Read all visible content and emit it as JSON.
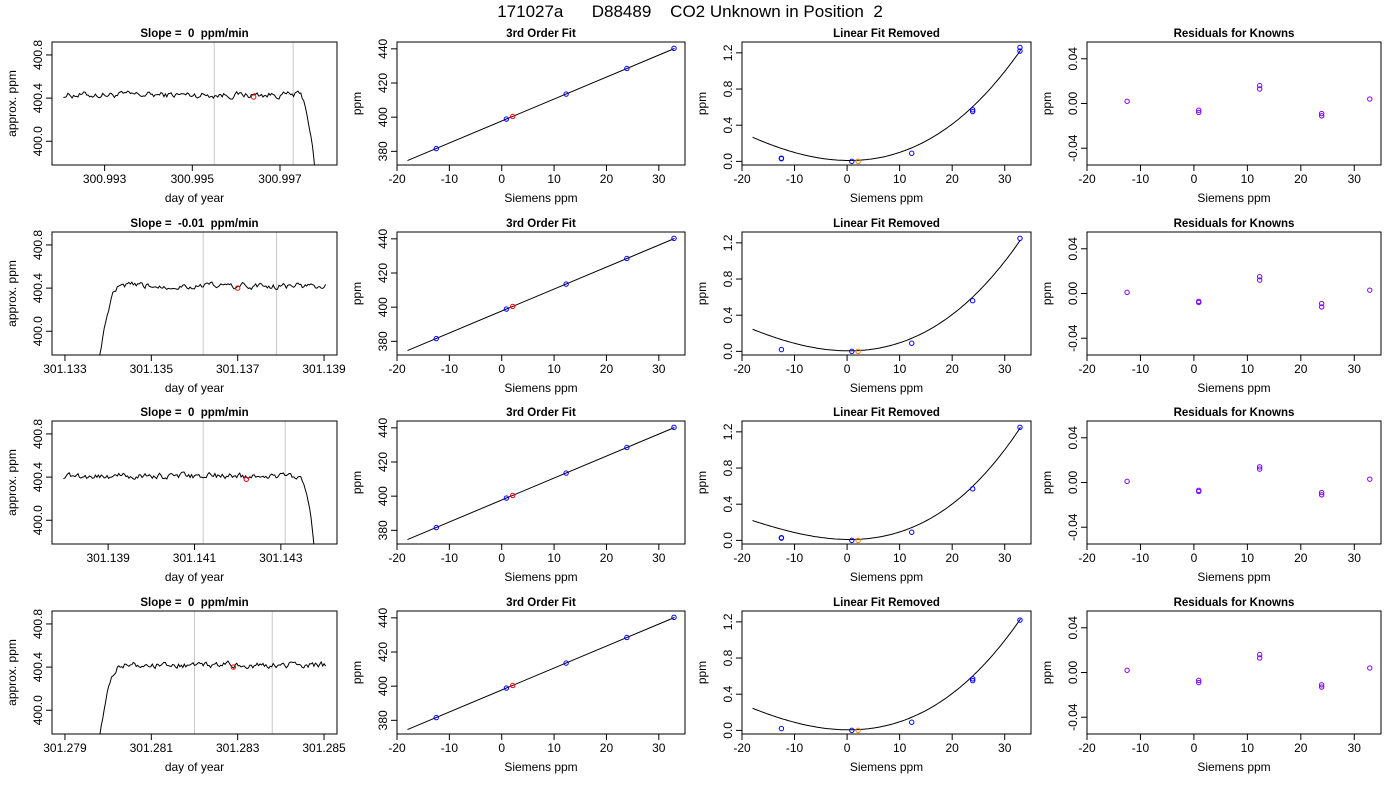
{
  "page_title": "171027a      D88489    CO2 Unknown in Position  2",
  "colors": {
    "background": "#ffffff",
    "trace": "#000000",
    "marker_vline": "#c8c8c8",
    "unknown_point": "#ff0000",
    "known_point": "#0000ff",
    "residual_point": "#8000ff",
    "orange_point": "#ff8000"
  },
  "chart_data": [
    {
      "type": "line",
      "row": 0,
      "col": 0,
      "title": "Slope =  0  ppm/min",
      "xlabel": "day of year",
      "ylabel": "approx. ppm",
      "xlim": [
        300.9918,
        300.9983
      ],
      "ylim": [
        399.78,
        400.92
      ],
      "xticks": [
        300.993,
        300.995,
        300.997
      ],
      "xtick_labels": [
        "300.993",
        "300.995",
        "300.997"
      ],
      "yticks": [
        400.0,
        400.4,
        400.8
      ],
      "ytick_labels": [
        "400.0",
        "400.4",
        "400.8"
      ],
      "vlines": [
        300.9955,
        300.9973
      ],
      "start_level": 400.43,
      "edge": "fall",
      "red_points": [
        {
          "x": 300.9964,
          "y": 400.41
        }
      ]
    },
    {
      "type": "line",
      "row": 0,
      "col": 1,
      "title": "3rd Order Fit",
      "xlabel": "Siemens ppm",
      "ylabel": "ppm",
      "xlim": [
        -20,
        35
      ],
      "ylim": [
        372,
        444
      ],
      "xticks": [
        -20,
        -10,
        0,
        10,
        20,
        30
      ],
      "xtick_labels": [
        "-20",
        "-10",
        "0",
        "10",
        "20",
        "30"
      ],
      "yticks": [
        380,
        400,
        420,
        440
      ],
      "ytick_labels": [
        "380",
        "400",
        "420",
        "440"
      ],
      "line": {
        "x": [
          -18,
          33
        ],
        "y": [
          374.6,
          440.2
        ]
      },
      "blue_points": [
        {
          "x": -12.5,
          "y": 381.6
        },
        {
          "x": 0.9,
          "y": 398.9
        },
        {
          "x": 12.3,
          "y": 413.5
        },
        {
          "x": 23.9,
          "y": 428.5
        },
        {
          "x": 32.9,
          "y": 440.3
        }
      ],
      "red_points": [
        {
          "x": 2.1,
          "y": 400.4
        }
      ]
    },
    {
      "type": "line",
      "row": 0,
      "col": 2,
      "title": "Linear Fit Removed",
      "xlabel": "Siemens ppm",
      "ylabel": "ppm",
      "xlim": [
        -20,
        35
      ],
      "ylim": [
        -0.04,
        1.32
      ],
      "xticks": [
        -20,
        -10,
        0,
        10,
        20,
        30
      ],
      "xtick_labels": [
        "-20",
        "-10",
        "0",
        "10",
        "20",
        "30"
      ],
      "yticks": [
        0.0,
        0.4,
        0.8,
        1.2
      ],
      "ytick_labels": [
        "0.0",
        "0.4",
        "0.8",
        "1.2"
      ],
      "curve_coef": [
        0.01,
        -0.00073,
        0.00089,
        7.6e-06
      ],
      "curve_xlim": [
        -18,
        33
      ],
      "blue_points": [
        {
          "x": -12.5,
          "y": 0.03
        },
        {
          "x": -12.5,
          "y": 0.035
        },
        {
          "x": 0.9,
          "y": 0.0
        },
        {
          "x": 12.3,
          "y": 0.09
        },
        {
          "x": 23.9,
          "y": 0.55
        },
        {
          "x": 23.9,
          "y": 0.57
        },
        {
          "x": 32.9,
          "y": 1.22
        },
        {
          "x": 32.9,
          "y": 1.26
        }
      ],
      "orange_points": [
        {
          "x": 2.1,
          "y": 0.0
        }
      ]
    },
    {
      "type": "scatter",
      "row": 0,
      "col": 3,
      "title": "Residuals for Knowns",
      "xlabel": "Siemens ppm",
      "ylabel": "ppm",
      "xlim": [
        -20,
        35
      ],
      "ylim": [
        -0.055,
        0.055
      ],
      "xticks": [
        -20,
        -10,
        0,
        10,
        20,
        30
      ],
      "xtick_labels": [
        "-20",
        "-10",
        "0",
        "10",
        "20",
        "30"
      ],
      "yticks": [
        -0.04,
        0.0,
        0.04
      ],
      "ytick_labels": [
        "-0.04",
        "0.00",
        "0.04"
      ],
      "purple_points": [
        {
          "x": -12.5,
          "y": 0.002
        },
        {
          "x": 0.9,
          "y": -0.008
        },
        {
          "x": 0.9,
          "y": -0.006
        },
        {
          "x": 12.3,
          "y": 0.013
        },
        {
          "x": 12.3,
          "y": 0.016
        },
        {
          "x": 23.9,
          "y": -0.011
        },
        {
          "x": 23.9,
          "y": -0.009
        },
        {
          "x": 32.9,
          "y": 0.004
        }
      ]
    },
    {
      "type": "line",
      "row": 1,
      "col": 0,
      "title": "Slope =  -0.01  ppm/min",
      "xlabel": "day of year",
      "ylabel": "approx. ppm",
      "xlim": [
        301.1327,
        301.1393
      ],
      "ylim": [
        399.78,
        400.92
      ],
      "xticks": [
        301.133,
        301.135,
        301.137,
        301.139
      ],
      "xtick_labels": [
        "301.133",
        "301.135",
        "301.137",
        "301.139"
      ],
      "yticks": [
        400.0,
        400.4,
        400.8
      ],
      "ytick_labels": [
        "400.0",
        "400.4",
        "400.8"
      ],
      "vlines": [
        301.1362,
        301.1379
      ],
      "start_level": 400.42,
      "edge": "rise",
      "red_points": [
        {
          "x": 301.137,
          "y": 400.4
        }
      ]
    },
    {
      "type": "line",
      "row": 1,
      "col": 1,
      "title": "3rd Order Fit",
      "xlabel": "Siemens ppm",
      "ylabel": "ppm",
      "xlim": [
        -20,
        35
      ],
      "ylim": [
        372,
        444
      ],
      "xticks": [
        -20,
        -10,
        0,
        10,
        20,
        30
      ],
      "xtick_labels": [
        "-20",
        "-10",
        "0",
        "10",
        "20",
        "30"
      ],
      "yticks": [
        380,
        400,
        420,
        440
      ],
      "ytick_labels": [
        "380",
        "400",
        "420",
        "440"
      ],
      "line": {
        "x": [
          -18,
          33
        ],
        "y": [
          374.6,
          440.2
        ]
      },
      "blue_points": [
        {
          "x": -12.5,
          "y": 381.6
        },
        {
          "x": 0.9,
          "y": 398.9
        },
        {
          "x": 12.3,
          "y": 413.5
        },
        {
          "x": 23.9,
          "y": 428.5
        },
        {
          "x": 32.9,
          "y": 440.3
        }
      ],
      "red_points": [
        {
          "x": 2.1,
          "y": 400.4
        }
      ]
    },
    {
      "type": "line",
      "row": 1,
      "col": 2,
      "title": "Linear Fit Removed",
      "xlabel": "Siemens ppm",
      "ylabel": "ppm",
      "xlim": [
        -20,
        35
      ],
      "ylim": [
        -0.04,
        1.32
      ],
      "xticks": [
        -20,
        -10,
        0,
        10,
        20,
        30
      ],
      "xtick_labels": [
        "-20",
        "-10",
        "0",
        "10",
        "20",
        "30"
      ],
      "yticks": [
        0.0,
        0.4,
        0.8,
        1.2
      ],
      "ytick_labels": [
        "0.0",
        "0.4",
        "0.8",
        "1.2"
      ],
      "curve_coef": [
        0.006,
        -0.00058,
        0.00086,
        8.6e-06
      ],
      "curve_xlim": [
        -18,
        33
      ],
      "blue_points": [
        {
          "x": -12.5,
          "y": 0.02
        },
        {
          "x": 0.9,
          "y": 0.0
        },
        {
          "x": 12.3,
          "y": 0.09
        },
        {
          "x": 23.9,
          "y": 0.56
        },
        {
          "x": 32.9,
          "y": 1.25
        }
      ],
      "orange_points": [
        {
          "x": 2.1,
          "y": 0.0
        }
      ]
    },
    {
      "type": "scatter",
      "row": 1,
      "col": 3,
      "title": "Residuals for Knowns",
      "xlabel": "Siemens ppm",
      "ylabel": "ppm",
      "xlim": [
        -20,
        35
      ],
      "ylim": [
        -0.055,
        0.055
      ],
      "xticks": [
        -20,
        -10,
        0,
        10,
        20,
        30
      ],
      "xtick_labels": [
        "-20",
        "-10",
        "0",
        "10",
        "20",
        "30"
      ],
      "yticks": [
        -0.04,
        0.0,
        0.04
      ],
      "ytick_labels": [
        "-0.04",
        "0.00",
        "0.04"
      ],
      "purple_points": [
        {
          "x": -12.5,
          "y": 0.001
        },
        {
          "x": 0.9,
          "y": -0.008
        },
        {
          "x": 0.9,
          "y": -0.007
        },
        {
          "x": 12.3,
          "y": 0.012
        },
        {
          "x": 12.3,
          "y": 0.015
        },
        {
          "x": 23.9,
          "y": -0.012
        },
        {
          "x": 23.9,
          "y": -0.009
        },
        {
          "x": 32.9,
          "y": 0.003
        }
      ]
    },
    {
      "type": "line",
      "row": 2,
      "col": 0,
      "title": "Slope =  0  ppm/min",
      "xlabel": "day of year",
      "ylabel": "approx. ppm",
      "xlim": [
        301.1377,
        301.1443
      ],
      "ylim": [
        399.78,
        400.92
      ],
      "xticks": [
        301.139,
        301.141,
        301.143
      ],
      "xtick_labels": [
        "301.139",
        "301.141",
        "301.143"
      ],
      "yticks": [
        400.0,
        400.4,
        400.8
      ],
      "ytick_labels": [
        "400.0",
        "400.4",
        "400.8"
      ],
      "vlines": [
        301.1412,
        301.1431
      ],
      "start_level": 400.41,
      "edge": "fall",
      "red_points": [
        {
          "x": 301.1422,
          "y": 400.38
        }
      ]
    },
    {
      "type": "line",
      "row": 2,
      "col": 1,
      "title": "3rd Order Fit",
      "xlabel": "Siemens ppm",
      "ylabel": "ppm",
      "xlim": [
        -20,
        35
      ],
      "ylim": [
        372,
        444
      ],
      "xticks": [
        -20,
        -10,
        0,
        10,
        20,
        30
      ],
      "xtick_labels": [
        "-20",
        "-10",
        "0",
        "10",
        "20",
        "30"
      ],
      "yticks": [
        380,
        400,
        420,
        440
      ],
      "ytick_labels": [
        "380",
        "400",
        "420",
        "440"
      ],
      "line": {
        "x": [
          -18,
          33
        ],
        "y": [
          374.6,
          440.2
        ]
      },
      "blue_points": [
        {
          "x": -12.5,
          "y": 381.6
        },
        {
          "x": 0.9,
          "y": 398.9
        },
        {
          "x": 12.3,
          "y": 413.5
        },
        {
          "x": 23.9,
          "y": 428.5
        },
        {
          "x": 32.9,
          "y": 440.3
        }
      ],
      "red_points": [
        {
          "x": 2.1,
          "y": 400.4
        }
      ]
    },
    {
      "type": "line",
      "row": 2,
      "col": 2,
      "title": "Linear Fit Removed",
      "xlabel": "Siemens ppm",
      "ylabel": "ppm",
      "xlim": [
        -20,
        35
      ],
      "ylim": [
        -0.04,
        1.32
      ],
      "xticks": [
        -20,
        -10,
        0,
        10,
        20,
        30
      ],
      "xtick_labels": [
        "-20",
        "-10",
        "0",
        "10",
        "20",
        "30"
      ],
      "yticks": [
        0.0,
        0.4,
        0.8,
        1.2
      ],
      "ytick_labels": [
        "0.0",
        "0.4",
        "0.8",
        "1.2"
      ],
      "curve_coef": [
        0.01,
        -0.0008,
        0.0008,
        1.1e-05
      ],
      "curve_xlim": [
        -18,
        33
      ],
      "blue_points": [
        {
          "x": -12.5,
          "y": 0.025
        },
        {
          "x": -12.5,
          "y": 0.03
        },
        {
          "x": 0.9,
          "y": 0.0
        },
        {
          "x": 12.3,
          "y": 0.09
        },
        {
          "x": 23.9,
          "y": 0.57
        },
        {
          "x": 32.9,
          "y": 1.25
        }
      ],
      "orange_points": [
        {
          "x": 2.1,
          "y": 0.0
        }
      ]
    },
    {
      "type": "scatter",
      "row": 2,
      "col": 3,
      "title": "Residuals for Knowns",
      "xlabel": "Siemens ppm",
      "ylabel": "ppm",
      "xlim": [
        -20,
        35
      ],
      "ylim": [
        -0.055,
        0.055
      ],
      "xticks": [
        -20,
        -10,
        0,
        10,
        20,
        30
      ],
      "xtick_labels": [
        "-20",
        "-10",
        "0",
        "10",
        "20",
        "30"
      ],
      "yticks": [
        -0.04,
        0.0,
        0.04
      ],
      "ytick_labels": [
        "-0.04",
        "0.00",
        "0.04"
      ],
      "purple_points": [
        {
          "x": -12.5,
          "y": 0.001
        },
        {
          "x": 0.9,
          "y": -0.008
        },
        {
          "x": 0.9,
          "y": -0.007
        },
        {
          "x": 12.3,
          "y": 0.012
        },
        {
          "x": 12.3,
          "y": 0.014
        },
        {
          "x": 23.9,
          "y": -0.011
        },
        {
          "x": 23.9,
          "y": -0.009
        },
        {
          "x": 32.9,
          "y": 0.003
        }
      ]
    },
    {
      "type": "line",
      "row": 3,
      "col": 0,
      "title": "Slope =  0  ppm/min",
      "xlabel": "day of year",
      "ylabel": "approx. ppm",
      "xlim": [
        301.2787,
        301.2853
      ],
      "ylim": [
        399.78,
        400.92
      ],
      "xticks": [
        301.279,
        301.281,
        301.283,
        301.285
      ],
      "xtick_labels": [
        "301.279",
        "301.281",
        "301.283",
        "301.285"
      ],
      "yticks": [
        400.0,
        400.4,
        400.8
      ],
      "ytick_labels": [
        "400.0",
        "400.4",
        "400.8"
      ],
      "vlines": [
        301.282,
        301.2838
      ],
      "start_level": 400.42,
      "edge": "rise",
      "red_points": [
        {
          "x": 301.2829,
          "y": 400.4
        }
      ]
    },
    {
      "type": "line",
      "row": 3,
      "col": 1,
      "title": "3rd Order Fit",
      "xlabel": "Siemens ppm",
      "ylabel": "ppm",
      "xlim": [
        -20,
        35
      ],
      "ylim": [
        372,
        444
      ],
      "xticks": [
        -20,
        -10,
        0,
        10,
        20,
        30
      ],
      "xtick_labels": [
        "-20",
        "-10",
        "0",
        "10",
        "20",
        "30"
      ],
      "yticks": [
        380,
        400,
        420,
        440
      ],
      "ytick_labels": [
        "380",
        "400",
        "420",
        "440"
      ],
      "line": {
        "x": [
          -18,
          33
        ],
        "y": [
          374.6,
          440.2
        ]
      },
      "blue_points": [
        {
          "x": -12.5,
          "y": 381.6
        },
        {
          "x": 0.9,
          "y": 398.9
        },
        {
          "x": 12.3,
          "y": 413.5
        },
        {
          "x": 23.9,
          "y": 428.5
        },
        {
          "x": 32.9,
          "y": 440.3
        }
      ],
      "red_points": [
        {
          "x": 2.1,
          "y": 400.4
        }
      ]
    },
    {
      "type": "line",
      "row": 3,
      "col": 2,
      "title": "Linear Fit Removed",
      "xlabel": "Siemens ppm",
      "ylabel": "ppm",
      "xlim": [
        -20,
        35
      ],
      "ylim": [
        -0.04,
        1.32
      ],
      "xticks": [
        -20,
        -10,
        0,
        10,
        20,
        30
      ],
      "xtick_labels": [
        "-20",
        "-10",
        "0",
        "10",
        "20",
        "30"
      ],
      "yticks": [
        0.0,
        0.4,
        0.8,
        1.2
      ],
      "ytick_labels": [
        "0.0",
        "0.4",
        "0.8",
        "1.2"
      ],
      "curve_coef": [
        0.006,
        -0.00058,
        0.00086,
        8.6e-06
      ],
      "curve_xlim": [
        -18,
        33
      ],
      "blue_points": [
        {
          "x": -12.5,
          "y": 0.02
        },
        {
          "x": 0.9,
          "y": 0.0
        },
        {
          "x": 12.3,
          "y": 0.09
        },
        {
          "x": 23.9,
          "y": 0.55
        },
        {
          "x": 23.9,
          "y": 0.57
        },
        {
          "x": 32.9,
          "y": 1.22
        }
      ],
      "orange_points": [
        {
          "x": 2.1,
          "y": 0.0
        }
      ]
    },
    {
      "type": "scatter",
      "row": 3,
      "col": 3,
      "title": "Residuals for Knowns",
      "xlabel": "Siemens ppm",
      "ylabel": "ppm",
      "xlim": [
        -20,
        35
      ],
      "ylim": [
        -0.055,
        0.055
      ],
      "xticks": [
        -20,
        -10,
        0,
        10,
        20,
        30
      ],
      "xtick_labels": [
        "-20",
        "-10",
        "0",
        "10",
        "20",
        "30"
      ],
      "yticks": [
        -0.04,
        0.0,
        0.04
      ],
      "ytick_labels": [
        "-0.04",
        "0.00",
        "0.04"
      ],
      "purple_points": [
        {
          "x": -12.5,
          "y": 0.002
        },
        {
          "x": 0.9,
          "y": -0.009
        },
        {
          "x": 0.9,
          "y": -0.007
        },
        {
          "x": 12.3,
          "y": 0.013
        },
        {
          "x": 12.3,
          "y": 0.016
        },
        {
          "x": 23.9,
          "y": -0.013
        },
        {
          "x": 23.9,
          "y": -0.011
        },
        {
          "x": 32.9,
          "y": 0.004
        }
      ]
    }
  ]
}
